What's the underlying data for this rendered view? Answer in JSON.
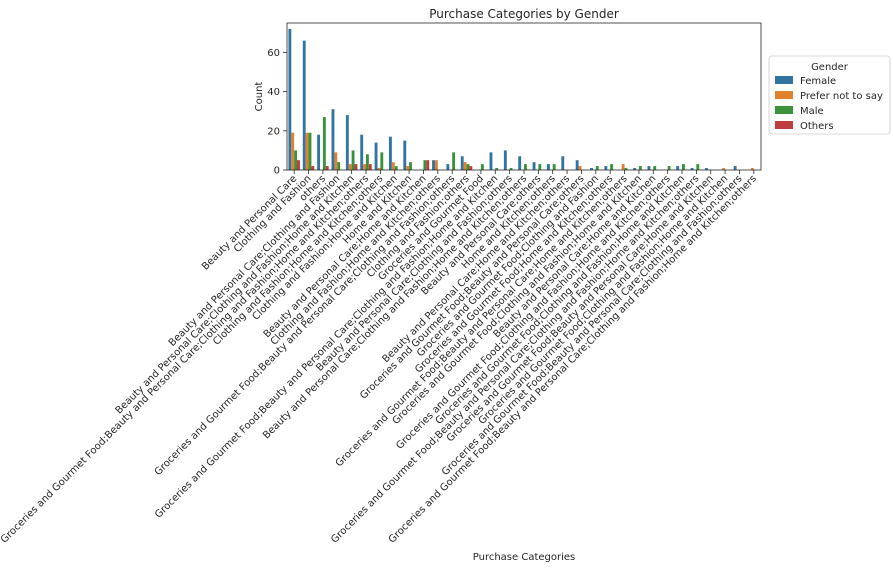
{
  "chart_data": {
    "type": "bar",
    "title": "Purchase Categories by Gender",
    "xlabel": "Purchase Categories",
    "ylabel": "Count",
    "ylim": [
      0,
      75
    ],
    "yticks": [
      0,
      20,
      40,
      60
    ],
    "legend": {
      "title": "Gender",
      "placement": "outside-right"
    },
    "categories": [
      "Beauty and Personal Care",
      "Clothing and Fashion",
      "others",
      "Beauty and Personal Care;Clothing and Fashion",
      "Beauty and Personal Care;Clothing and Fashion;Home and Kitchen",
      "Groceries and Gourmet Food;Beauty and Personal Care;Clothing and Fashion;Home and Kitchen;others",
      "Clothing and Fashion;Home and Kitchen;others",
      "Clothing and Fashion;Home and Kitchen",
      "Home and Kitchen",
      "Beauty and Personal Care;Home and Kitchen",
      "Clothing and Fashion;Home and Kitchen;others",
      "Groceries and Gourmet Food;Beauty and Personal Care;Clothing and Fashion;others",
      "Clothing and Fashion;others",
      "Groceries and Gourmet Food",
      "Groceries and Gourmet Food;Beauty and Personal Care;Clothing and Fashion;Home and Kitchen",
      "Beauty and Personal Care;Clothing and Fashion;others",
      "Beauty and Personal Care;Clothing and Fashion;Home and Kitchen;others",
      "Beauty and Personal Care;others",
      "Home and Kitchen;others",
      "Beauty and Personal Care;Home and Kitchen;others",
      "Groceries and Gourmet Food;Beauty and Personal Care;others",
      "Groceries and Gourmet Food;Clothing and Fashion",
      "Groceries and Gourmet Food;Home and Kitchen;others",
      "Groceries and Gourmet Food;Beauty and Personal Care;Home and Kitchen;others",
      "Groceries and Gourmet Food;Clothing and Fashion;Home and Kitchen",
      "Beauty and Personal Care;Home and Kitchen",
      "Groceries and Gourmet Food;Clothing and Fashion;Home and Kitchen;others",
      "Groceries and Gourmet Food;Clothing and Fashion;Home and Kitchen",
      "Groceries and Gourmet Food;Beauty and Personal Care;Clothing and Fashion;Home and Kitchen;others",
      "Groceries and Gourmet Food;Beauty and Personal Care;Home and Kitchen",
      "Groceries and Gourmet Food;Clothing and Fashion;Home and Kitchen",
      "Groceries and Gourmet Food;Beauty and Personal Care;Clothing and Fashion;others",
      "Groceries and Gourmet Food;Beauty and Personal Care;Clothing and Fashion;Home and Kitchen;others"
    ],
    "series": [
      {
        "name": "Female",
        "color": "#3274a1",
        "values": [
          72,
          66,
          18,
          31,
          28,
          18,
          14,
          17,
          15,
          0,
          5,
          3,
          7,
          0,
          9,
          10,
          7,
          4,
          3,
          7,
          5,
          1,
          2,
          0,
          1,
          2,
          0,
          2,
          1,
          1,
          0,
          2,
          0
        ]
      },
      {
        "name": "Prefer not to say",
        "color": "#e1812c",
        "values": [
          19,
          19,
          0,
          9,
          3,
          3,
          1,
          4,
          2,
          0,
          5,
          0,
          4,
          0,
          0,
          0,
          0,
          0,
          0,
          0,
          2,
          0,
          0,
          3,
          0,
          0,
          0,
          0,
          0,
          0,
          1,
          0,
          1
        ]
      },
      {
        "name": "Male",
        "color": "#3a923a",
        "values": [
          10,
          19,
          27,
          4,
          10,
          8,
          9,
          2,
          4,
          5,
          0,
          9,
          3,
          3,
          1,
          1,
          3,
          3,
          3,
          0,
          0,
          2,
          3,
          1,
          2,
          2,
          2,
          3,
          3,
          0,
          0,
          0,
          0
        ]
      },
      {
        "name": "Others",
        "color": "#c03d3e",
        "values": [
          5,
          2,
          2,
          0,
          3,
          3,
          0,
          0,
          0,
          5,
          0,
          0,
          2,
          0,
          0,
          0,
          0,
          0,
          0,
          0,
          0,
          0,
          0,
          0,
          0,
          0,
          0,
          0,
          0,
          0,
          0,
          0,
          0
        ]
      }
    ]
  }
}
